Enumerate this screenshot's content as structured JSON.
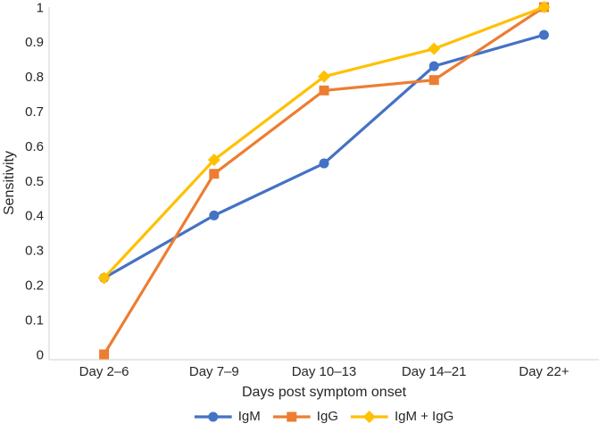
{
  "chart_data": {
    "type": "line",
    "title": "",
    "xlabel": "Days post symptom onset",
    "ylabel": "Sensitivity",
    "categories": [
      "Day 2–6",
      "Day 7–9",
      "Day 10–13",
      "Day 14–21",
      "Day 22+"
    ],
    "series": [
      {
        "name": "IgM",
        "color": "#4472C4",
        "marker": "circle",
        "values": [
          0.22,
          0.4,
          0.55,
          0.83,
          0.92
        ]
      },
      {
        "name": "IgG",
        "color": "#ED7D31",
        "marker": "square",
        "values": [
          0.0,
          0.52,
          0.76,
          0.79,
          1.0
        ]
      },
      {
        "name": "IgM + IgG",
        "color": "#FFC000",
        "marker": "diamond",
        "values": [
          0.22,
          0.56,
          0.8,
          0.88,
          1.0
        ]
      }
    ],
    "ylim": [
      0,
      1
    ],
    "yticks": [
      0,
      0.1,
      0.2,
      0.3,
      0.4,
      0.5,
      0.6,
      0.7,
      0.8,
      0.9,
      1
    ],
    "ytick_labels": [
      "0",
      "0.1",
      "0.2",
      "0.3",
      "0.4",
      "0.5",
      "0.6",
      "0.7",
      "0.8",
      "0.9",
      "1"
    ],
    "grid": false,
    "legend_position": "bottom-center",
    "axis_color": "#D9D9D9",
    "text_color": "#262626"
  }
}
